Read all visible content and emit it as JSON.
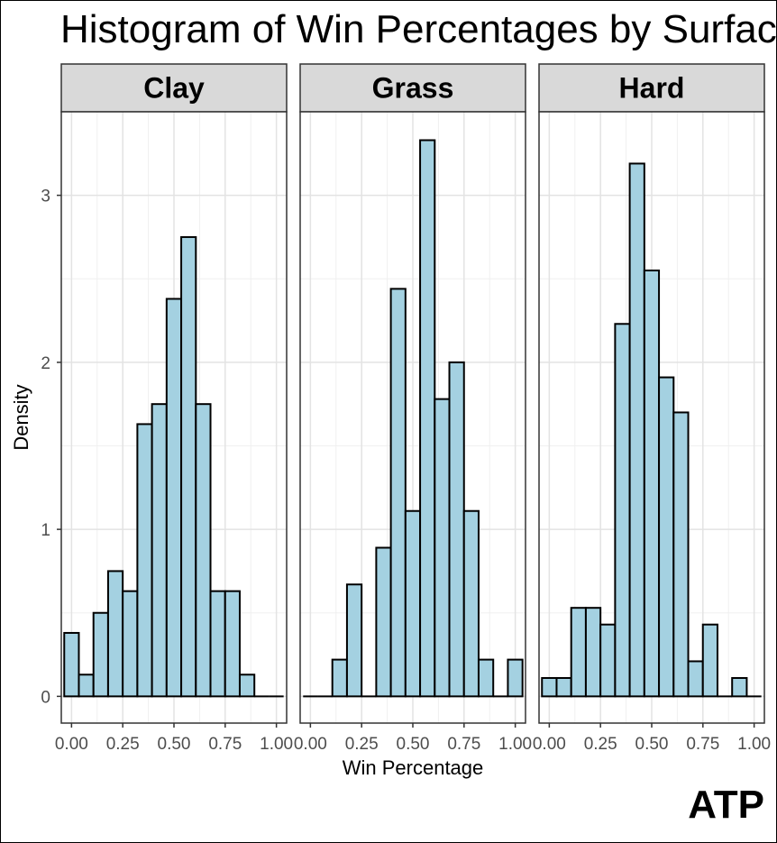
{
  "title": "Histogram of Win Percentages by Surface",
  "brand": "ATP",
  "chart_data": {
    "type": "bar",
    "subtype": "faceted-histogram",
    "title": "Histogram of Win Percentages by Surface",
    "xlabel": "Win Percentage",
    "ylabel": "Density",
    "xlim": [
      -0.05,
      1.05
    ],
    "ylim": [
      -0.16,
      3.5
    ],
    "x_ticks": [
      0,
      0.25,
      0.5,
      0.75,
      1
    ],
    "x_tick_labels": [
      "0.00",
      "0.25",
      "0.50",
      "0.75",
      "1.00"
    ],
    "y_ticks": [
      0,
      1,
      2,
      3
    ],
    "y_tick_labels": [
      "0",
      "1",
      "2",
      "3"
    ],
    "bin_width": 0.0714,
    "bin_start": -0.0357,
    "grid": true,
    "fill_color": "#a4d1e1",
    "border_color": "#000000",
    "panels": [
      {
        "label": "Clay",
        "densities": [
          0.38,
          0.13,
          0.5,
          0.75,
          0.63,
          1.63,
          1.75,
          2.38,
          2.75,
          1.75,
          0.63,
          0.63,
          0.13,
          0,
          0
        ]
      },
      {
        "label": "Grass",
        "densities": [
          0,
          0,
          0.22,
          0.67,
          0,
          0.89,
          2.44,
          1.11,
          3.33,
          1.78,
          2.0,
          1.11,
          0.22,
          0,
          0.22
        ]
      },
      {
        "label": "Hard",
        "densities": [
          0.11,
          0.11,
          0.53,
          0.53,
          0.43,
          2.23,
          3.19,
          2.55,
          1.91,
          1.7,
          0.21,
          0.43,
          0,
          0.11,
          0
        ]
      }
    ]
  }
}
